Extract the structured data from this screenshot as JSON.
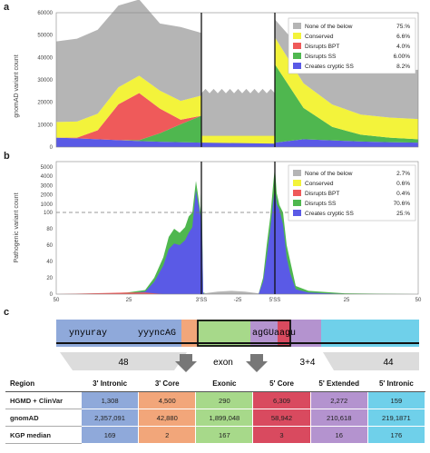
{
  "panels": {
    "a": "a",
    "b": "b",
    "c": "c"
  },
  "colors": {
    "none": "#b5b5b5",
    "conserved": "#f3f33b",
    "bpt": "#ef5a5a",
    "ss": "#4fb74f",
    "cryptic": "#5a5ae6",
    "intronic": "#8fa9da",
    "core3": "#f2a67a",
    "exonic": "#a7d98a",
    "core5": "#d94a5f",
    "extended": "#b493cf",
    "intronic5": "#6fd0ea"
  },
  "chart_data": [
    {
      "type": "area",
      "panel": "a",
      "ylabel": "gnomAD variant count",
      "ylim": [
        0,
        60000
      ],
      "yticks": [
        "0",
        "10000",
        "20000",
        "30000",
        "40000",
        "50000",
        "60000"
      ],
      "markers": [
        "3'SS",
        "5'SS"
      ],
      "legend": [
        {
          "name": "None of the below",
          "pct": "75.%"
        },
        {
          "name": "Conserved",
          "pct": "6.6%"
        },
        {
          "name": "Disrupts BPT",
          "pct": "4.0%"
        },
        {
          "name": "Disrupts SS",
          "pct": "6.00%"
        },
        {
          "name": "Creates cryptic SS",
          "pct": "8.2%"
        }
      ],
      "legend_position": "top-right",
      "segments": {
        "intron3": {
          "cryptic": [
            4200,
            3900,
            3500,
            3100,
            2700,
            2400,
            2200,
            2000
          ],
          "ss": [
            0,
            0,
            0,
            0,
            400,
            3800,
            8000,
            12000
          ],
          "bpt": [
            0,
            300,
            4000,
            16000,
            21000,
            11000,
            2000,
            0
          ],
          "conserved": [
            7000,
            7200,
            7400,
            7600,
            7800,
            8000,
            8400,
            9000
          ],
          "none": [
            36000,
            37000,
            37500,
            36500,
            34000,
            30000,
            33000,
            28000
          ]
        },
        "exon": {
          "base": [
            2000,
            1500
          ],
          "top": [
            24000,
            26000
          ]
        },
        "intron5": {
          "cryptic": [
            2000,
            3500,
            3000,
            2500,
            2200,
            2000
          ],
          "ss": [
            35000,
            14000,
            6000,
            3000,
            2000,
            1500
          ],
          "conserved": [
            12000,
            11000,
            10000,
            9000,
            9000,
            9000
          ],
          "none": [
            8000,
            14000,
            18000,
            20000,
            21000,
            22000
          ]
        }
      }
    },
    {
      "type": "area",
      "panel": "b",
      "ylabel": "Pathogenic variant count",
      "yscale": "symlog",
      "yticks": [
        "0",
        "20",
        "40",
        "60",
        "80",
        "100",
        "1000",
        "2000",
        "3000",
        "4000",
        "5000"
      ],
      "xticks": [
        "50",
        "25",
        "3'SS",
        "-25",
        "5'SS",
        "25",
        "50"
      ],
      "legend": [
        {
          "name": "None of the below",
          "pct": "2.7%"
        },
        {
          "name": "Conserved",
          "pct": "0.6%"
        },
        {
          "name": "Disrupts BPT",
          "pct": "0.4%"
        },
        {
          "name": "Disrupts SS",
          "pct": "70.6%"
        },
        {
          "name": "Creates cryptic SS",
          "pct": "25.%"
        }
      ],
      "legend_position": "top-right"
    }
  ],
  "diagram": {
    "seq_left": "ynyuray",
    "seq_mid": "yyyncAG",
    "seq_right": "agGUaagu",
    "labels": {
      "n48": "48",
      "exon": "exon",
      "n34": "3+4",
      "n44": "44"
    }
  },
  "table": {
    "headers": [
      "Region",
      "3' Intronic",
      "3' Core",
      "Exonic",
      "5' Core",
      "5' Extended",
      "5' Intronic"
    ],
    "rows": [
      {
        "label": "HGMD + ClinVar",
        "cells": [
          "1,308",
          "4,500",
          "290",
          "6,309",
          "2,272",
          "159"
        ]
      },
      {
        "label": "gnomAD",
        "cells": [
          "2,357,091",
          "42,880",
          "1,899,048",
          "58,942",
          "210,618",
          "219,1871"
        ]
      },
      {
        "label": "KGP median",
        "cells": [
          "169",
          "2",
          "167",
          "3",
          "16",
          "176"
        ]
      }
    ]
  }
}
